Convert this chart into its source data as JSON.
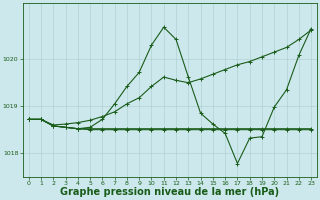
{
  "background_color": "#cce8ec",
  "grid_color_major": "#aacccc",
  "grid_color_minor": "#bbdddd",
  "line_color": "#1a5c1a",
  "xlabel": "Graphe pression niveau de la mer (hPa)",
  "xlabel_fontsize": 7,
  "yticks": [
    1018,
    1019,
    1020
  ],
  "ylim": [
    1017.5,
    1021.2
  ],
  "xlim": [
    -0.5,
    23.5
  ],
  "xticks": [
    0,
    1,
    2,
    3,
    4,
    5,
    6,
    7,
    8,
    9,
    10,
    11,
    12,
    13,
    14,
    15,
    16,
    17,
    18,
    19,
    20,
    21,
    22,
    23
  ],
  "series": [
    {
      "x": [
        0,
        1,
        2,
        3,
        4,
        5,
        6,
        7,
        8,
        9,
        10,
        11,
        12,
        13,
        14,
        15,
        16,
        17,
        18,
        19,
        20,
        21,
        22,
        23
      ],
      "y": [
        1018.72,
        1018.72,
        1018.6,
        1018.62,
        1018.65,
        1018.7,
        1018.78,
        1018.88,
        1019.05,
        1019.18,
        1019.42,
        1019.62,
        1019.55,
        1019.5,
        1019.58,
        1019.68,
        1019.78,
        1019.88,
        1019.95,
        1020.05,
        1020.15,
        1020.25,
        1020.42,
        1020.62
      ]
    },
    {
      "x": [
        0,
        1,
        2,
        3,
        4,
        5,
        6,
        7,
        8,
        9,
        10,
        11,
        12,
        13,
        14,
        15,
        16,
        17,
        18,
        19,
        20,
        21,
        22,
        23
      ],
      "y": [
        1018.72,
        1018.72,
        1018.58,
        1018.55,
        1018.52,
        1018.5,
        1018.5,
        1018.5,
        1018.5,
        1018.5,
        1018.5,
        1018.5,
        1018.5,
        1018.5,
        1018.5,
        1018.5,
        1018.5,
        1018.5,
        1018.5,
        1018.5,
        1018.5,
        1018.5,
        1018.5,
        1018.5
      ]
    },
    {
      "x": [
        0,
        1,
        2,
        3,
        4,
        5,
        6,
        7,
        8,
        9,
        10,
        11,
        12,
        13,
        14,
        15,
        16,
        17,
        18,
        19,
        20,
        21,
        22,
        23
      ],
      "y": [
        1018.72,
        1018.72,
        1018.58,
        1018.55,
        1018.52,
        1018.55,
        1018.72,
        1019.05,
        1019.42,
        1019.72,
        1020.3,
        1020.68,
        1020.42,
        1019.62,
        1018.85,
        1018.62,
        1018.42,
        1017.78,
        1018.32,
        1018.35,
        1018.98,
        1019.35,
        1020.08,
        1020.65
      ]
    },
    {
      "x": [
        0,
        1,
        2,
        3,
        4,
        5,
        6,
        7,
        8,
        9,
        10,
        11,
        12,
        13,
        14,
        15,
        16,
        17,
        18,
        19,
        20,
        21,
        22,
        23
      ],
      "y": [
        1018.72,
        1018.72,
        1018.58,
        1018.55,
        1018.52,
        1018.52,
        1018.52,
        1018.52,
        1018.52,
        1018.52,
        1018.52,
        1018.52,
        1018.52,
        1018.52,
        1018.52,
        1018.52,
        1018.52,
        1018.52,
        1018.52,
        1018.52,
        1018.52,
        1018.52,
        1018.52,
        1018.52
      ]
    }
  ]
}
